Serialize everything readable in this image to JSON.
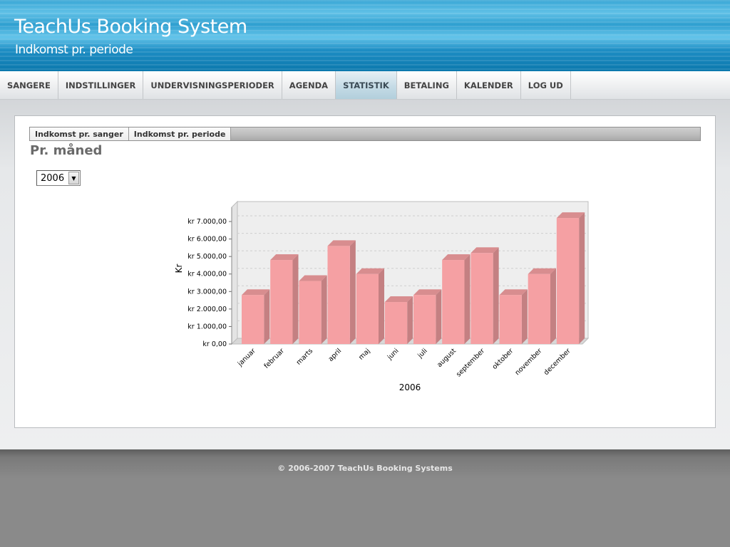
{
  "header": {
    "title": "TeachUs Booking System",
    "subtitle": "Indkomst pr. periode"
  },
  "nav": {
    "items": [
      {
        "label": "SANGERE",
        "active": false
      },
      {
        "label": "INDSTILLINGER",
        "active": false
      },
      {
        "label": "UNDERVISNINGSPERIODER",
        "active": false
      },
      {
        "label": "AGENDA",
        "active": false
      },
      {
        "label": "STATISTIK",
        "active": true
      },
      {
        "label": "BETALING",
        "active": false
      },
      {
        "label": "KALENDER",
        "active": false
      },
      {
        "label": "LOG UD",
        "active": false
      }
    ]
  },
  "subtabs": {
    "items": [
      {
        "label": "Indkomst pr. sanger"
      },
      {
        "label": "Indkomst pr. periode"
      }
    ]
  },
  "section": {
    "title": "Pr. måned"
  },
  "year_select": {
    "value": "2006",
    "button_icon": "dropdown-arrow-icon"
  },
  "chart_data": {
    "type": "bar",
    "categories": [
      "januar",
      "februar",
      "marts",
      "april",
      "maj",
      "juni",
      "juli",
      "august",
      "september",
      "oktober",
      "november",
      "december"
    ],
    "values": [
      2800,
      4800,
      3600,
      5600,
      4000,
      2400,
      2800,
      4800,
      5200,
      2800,
      4000,
      7200
    ],
    "xlabel": "2006",
    "ylabel": "Kr",
    "ylim": [
      0,
      7000
    ],
    "yticks": [
      0,
      1000,
      2000,
      3000,
      4000,
      5000,
      6000,
      7000
    ],
    "ytick_labels": [
      "kr 0,00",
      "kr 1.000,00",
      "kr 2.000,00",
      "kr 3.000,00",
      "kr 4.000,00",
      "kr 5.000,00",
      "kr 6.000,00",
      "kr 7.000,00"
    ],
    "grid": true,
    "bar_color": "#f5a0a3",
    "plot_background": "#eeeeee",
    "three_d": true
  },
  "footer": {
    "text": "© 2006-2007 TeachUs Booking Systems"
  }
}
